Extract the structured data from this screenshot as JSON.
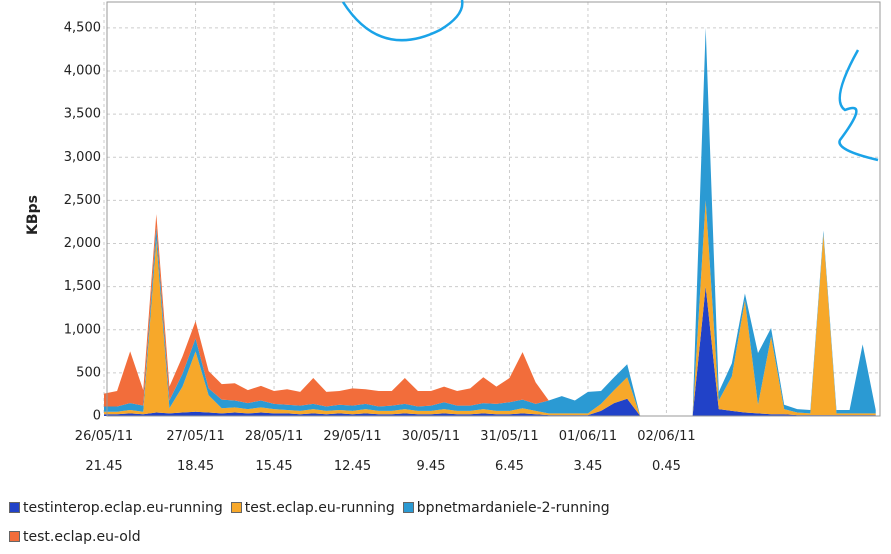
{
  "chart_data": {
    "type": "stacked_area",
    "y_label": "KBps",
    "categories": [
      "26/05/11\n21.45",
      null,
      null,
      null,
      null,
      null,
      null,
      "27/05/11\n18.45",
      null,
      null,
      null,
      null,
      null,
      "28/05/11\n15.45",
      null,
      null,
      null,
      null,
      null,
      "29/05/11\n12.45",
      null,
      null,
      null,
      null,
      null,
      "30/05/11\n9.45",
      null,
      null,
      null,
      null,
      null,
      "31/05/11\n6.45",
      null,
      null,
      null,
      null,
      null,
      "01/06/11\n3.45",
      null,
      null,
      null,
      null,
      null,
      "02/06/11\n0.45",
      null,
      null,
      null,
      null,
      null,
      null,
      null,
      null,
      null,
      null,
      null,
      null,
      null,
      null,
      null,
      null
    ],
    "ylim": [
      0,
      4800
    ],
    "yticks": [
      0,
      500,
      {
        "value": 1000,
        "label": "1,000"
      },
      {
        "value": 1500,
        "label": "1,500"
      },
      {
        "value": 2000,
        "label": "2,000"
      },
      {
        "value": 2500,
        "label": "2,500"
      },
      {
        "value": 3000,
        "label": "3,000"
      },
      {
        "value": 3500,
        "label": "3,500"
      },
      {
        "value": 4000,
        "label": "4,000"
      },
      {
        "value": 4500,
        "label": "4,500"
      }
    ],
    "grid": true,
    "series": [
      {
        "name": "testinterop.eclap.eu-running",
        "color": "#2142c8",
        "values": [
          20,
          20,
          30,
          20,
          40,
          30,
          40,
          50,
          40,
          30,
          40,
          30,
          40,
          30,
          30,
          20,
          30,
          20,
          30,
          20,
          30,
          20,
          20,
          30,
          20,
          20,
          30,
          20,
          20,
          30,
          20,
          20,
          30,
          20,
          10,
          10,
          10,
          10,
          60,
          150,
          200,
          0,
          0,
          0,
          0,
          0,
          1500,
          80,
          60,
          40,
          30,
          20,
          20,
          10,
          10,
          10,
          10,
          10,
          10,
          10
        ]
      },
      {
        "name": "test.eclap.eu-running",
        "color": "#f7a82a",
        "values": [
          30,
          30,
          40,
          30,
          2000,
          60,
          300,
          700,
          200,
          60,
          60,
          50,
          60,
          50,
          40,
          40,
          50,
          40,
          40,
          40,
          50,
          40,
          40,
          50,
          40,
          40,
          50,
          40,
          40,
          50,
          40,
          40,
          60,
          40,
          20,
          20,
          20,
          20,
          80,
          150,
          250,
          0,
          0,
          0,
          0,
          0,
          1000,
          100,
          400,
          1300,
          100,
          900,
          60,
          30,
          20,
          2100,
          20,
          20,
          20,
          20
        ]
      },
      {
        "name": "bpnetmardaniele-2-running",
        "color": "#2b9ad3",
        "values": [
          60,
          60,
          80,
          70,
          150,
          90,
          150,
          150,
          80,
          100,
          80,
          70,
          80,
          60,
          60,
          60,
          60,
          50,
          60,
          60,
          60,
          50,
          60,
          60,
          50,
          60,
          80,
          60,
          60,
          70,
          80,
          100,
          100,
          80,
          150,
          200,
          150,
          250,
          150,
          150,
          150,
          0,
          0,
          0,
          0,
          0,
          2000,
          100,
          150,
          80,
          600,
          100,
          50,
          40,
          40,
          40,
          40,
          40,
          800,
          40
        ]
      },
      {
        "name": "test.eclap.eu-old",
        "color": "#f26d3b",
        "values": [
          150,
          180,
          600,
          180,
          150,
          160,
          200,
          200,
          200,
          180,
          200,
          150,
          170,
          150,
          180,
          160,
          300,
          170,
          160,
          200,
          170,
          180,
          170,
          300,
          180,
          170,
          180,
          170,
          200,
          300,
          200,
          280,
          550,
          250,
          0,
          0,
          0,
          0,
          0,
          0,
          0,
          0,
          0,
          0,
          0,
          0,
          0,
          0,
          0,
          0,
          0,
          0,
          0,
          0,
          0,
          0,
          0,
          0,
          0,
          0
        ]
      }
    ]
  }
}
